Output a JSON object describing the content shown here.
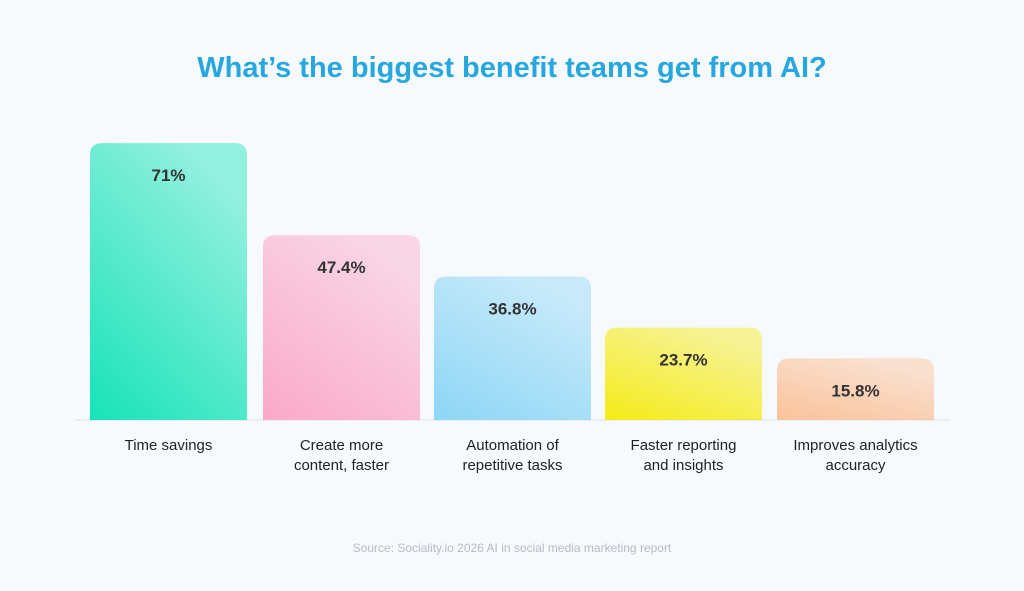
{
  "chart_data": {
    "type": "bar",
    "title": "What’s the biggest benefit teams get from AI?",
    "categories": [
      "Time savings",
      "Create more content, faster",
      "Automation of repetitive tasks",
      "Faster reporting and insights",
      "Improves analytics accuracy"
    ],
    "values": [
      71,
      47.4,
      36.8,
      23.7,
      15.8
    ],
    "value_labels": [
      "71%",
      "47.4%",
      "36.8%",
      "23.7%",
      "15.8%"
    ],
    "colors": [
      "#17e3b8",
      "#fba9c8",
      "#8dd6f6",
      "#f5eb17",
      "#fbc29a"
    ],
    "source": "Source: Sociality.io 2026 AI in social media marketing report"
  }
}
